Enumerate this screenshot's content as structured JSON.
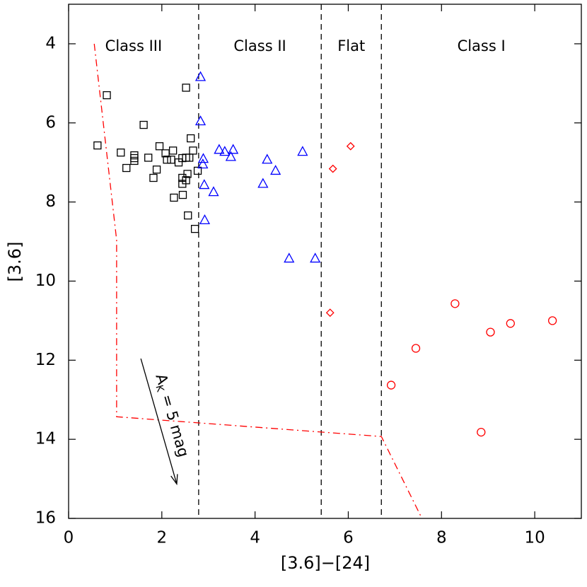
{
  "chart_data": {
    "type": "scatter",
    "x_label": "[3.6]−[24]",
    "y_label": "[3.6]",
    "xlim": [
      0,
      11
    ],
    "ylim": [
      16,
      3
    ],
    "xticks": [
      0,
      2,
      4,
      6,
      8,
      10
    ],
    "yticks": [
      4,
      6,
      8,
      10,
      12,
      14,
      16
    ],
    "series": [
      {
        "marker": "square",
        "color": "#000000",
        "x": [
          0.62,
          0.82,
          1.61,
          2.52,
          1.12,
          1.24,
          1.41,
          1.41,
          1.41,
          1.71,
          1.95,
          2.08,
          2.24,
          2.2,
          2.11,
          2.36,
          2.44,
          2.52,
          2.59,
          2.62,
          2.67,
          1.89,
          1.82,
          2.44,
          2.52,
          2.55,
          2.44,
          2.45,
          2.26,
          2.77,
          2.56,
          2.71
        ],
        "values": [
          6.57,
          5.3,
          6.05,
          5.11,
          6.75,
          7.14,
          6.82,
          6.96,
          6.89,
          6.88,
          6.59,
          6.77,
          6.7,
          6.93,
          6.93,
          7.0,
          6.89,
          6.88,
          6.88,
          6.39,
          6.7,
          7.18,
          7.39,
          7.39,
          7.45,
          7.29,
          7.54,
          7.82,
          7.89,
          7.21,
          8.34,
          8.68
        ]
      },
      {
        "marker": "triangle",
        "color": "#0000ff",
        "x": [
          2.83,
          2.83,
          2.89,
          2.88,
          2.91,
          3.23,
          3.35,
          3.53,
          3.48,
          3.11,
          2.92,
          4.26,
          4.44,
          4.17,
          5.02,
          4.73,
          5.29
        ],
        "values": [
          4.84,
          5.96,
          6.91,
          7.05,
          7.57,
          6.68,
          6.73,
          6.68,
          6.86,
          7.75,
          8.46,
          6.93,
          7.21,
          7.54,
          6.73,
          9.43,
          9.43
        ]
      },
      {
        "marker": "diamond",
        "color": "#ff0000",
        "x": [
          6.05,
          5.67,
          5.61
        ],
        "values": [
          6.59,
          7.16,
          10.8
        ]
      },
      {
        "marker": "circle",
        "color": "#ff0000",
        "x": [
          8.29,
          7.45,
          6.92,
          9.05,
          9.48,
          10.38,
          8.85
        ],
        "values": [
          10.57,
          11.7,
          12.63,
          11.29,
          11.07,
          11.0,
          13.82
        ]
      }
    ],
    "boundary_line": {
      "color": "#ff0000",
      "style": "dashdot",
      "x": [
        0.55,
        1.03,
        1.03,
        6.71,
        7.58
      ],
      "values": [
        4.0,
        8.96,
        13.43,
        13.93,
        16.0
      ]
    },
    "class_boundaries": [
      2.79,
      5.42,
      6.71
    ],
    "class_labels": [
      "Class III",
      "Class II",
      "Flat",
      "Class I"
    ],
    "arrow": {
      "x": [
        1.55,
        2.32
      ],
      "values": [
        11.96,
        15.13
      ],
      "label": {
        "text": "A",
        "sub": "K",
        "rest": " = 5 mag"
      }
    }
  }
}
